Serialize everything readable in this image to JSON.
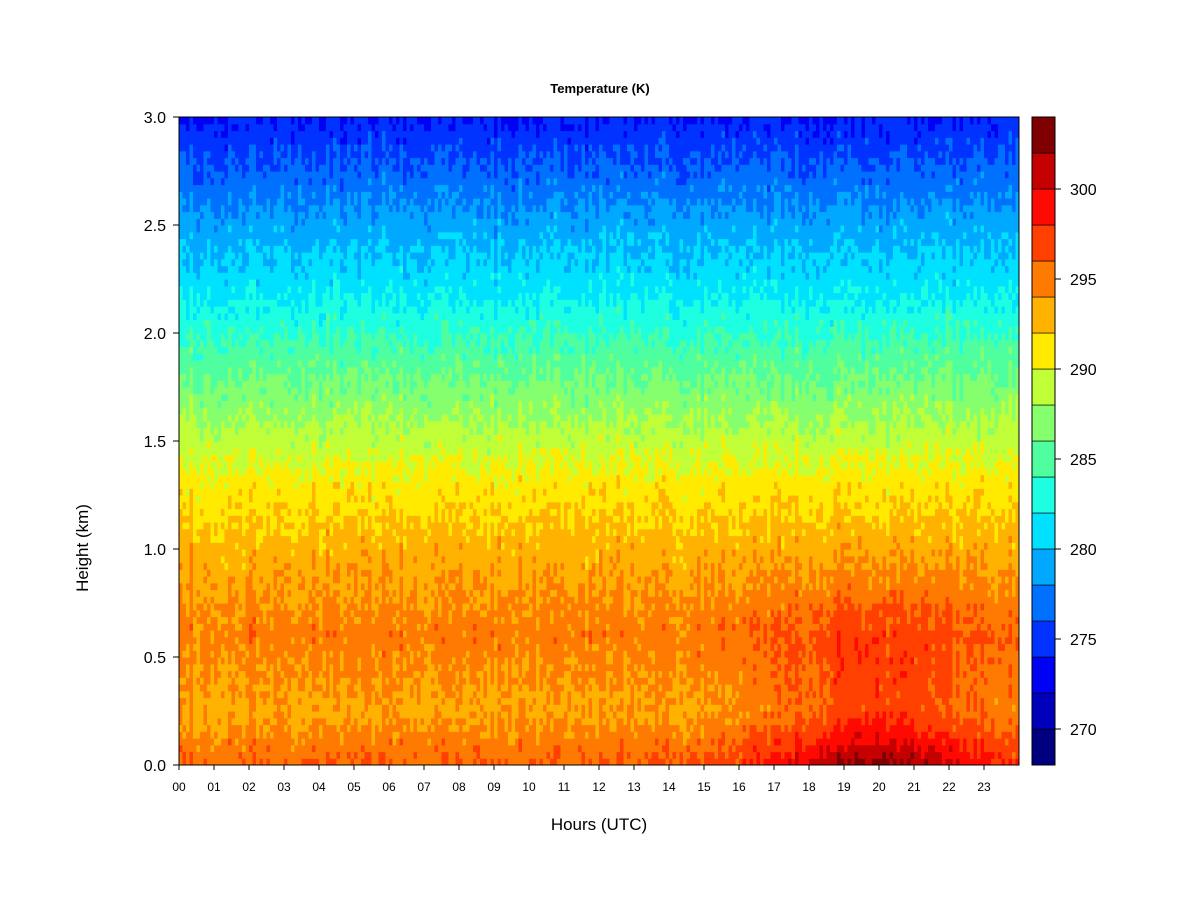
{
  "chart_data": {
    "type": "heatmap",
    "title": "Temperature (K)",
    "xlabel": "Hours (UTC)",
    "ylabel": "Height (km)",
    "xlim": [
      0,
      24
    ],
    "ylim": [
      0.0,
      3.0
    ],
    "x_ticks": [
      "00",
      "01",
      "02",
      "03",
      "04",
      "05",
      "06",
      "07",
      "08",
      "09",
      "10",
      "11",
      "12",
      "13",
      "14",
      "15",
      "16",
      "17",
      "18",
      "19",
      "20",
      "21",
      "22",
      "23"
    ],
    "y_ticks": [
      "0.0",
      "0.5",
      "1.0",
      "1.5",
      "2.0",
      "2.5",
      "3.0"
    ],
    "colorbar": {
      "range": [
        268,
        304
      ],
      "step": 2,
      "ticks": [
        "270",
        "275",
        "280",
        "285",
        "290",
        "295",
        "300"
      ],
      "colors": [
        "#00007f",
        "#0000bb",
        "#0000f5",
        "#0033ff",
        "#0070ff",
        "#00a8ff",
        "#00e1ff",
        "#1dffe0",
        "#4fff9f",
        "#86ff6f",
        "#c0ff38",
        "#ffea00",
        "#ffb300",
        "#ff7a00",
        "#ff4000",
        "#ff0a00",
        "#c40000",
        "#7f0000"
      ]
    },
    "profile_keypoints_km_vs_K": {
      "heights_km": [
        0.0,
        0.25,
        0.6,
        1.0,
        1.3,
        1.6,
        1.9,
        2.2,
        2.5,
        2.8,
        3.0
      ],
      "temperature_K": [
        296,
        293.5,
        295,
        293,
        291,
        288,
        285,
        281.5,
        279,
        276,
        274
      ]
    }
  }
}
